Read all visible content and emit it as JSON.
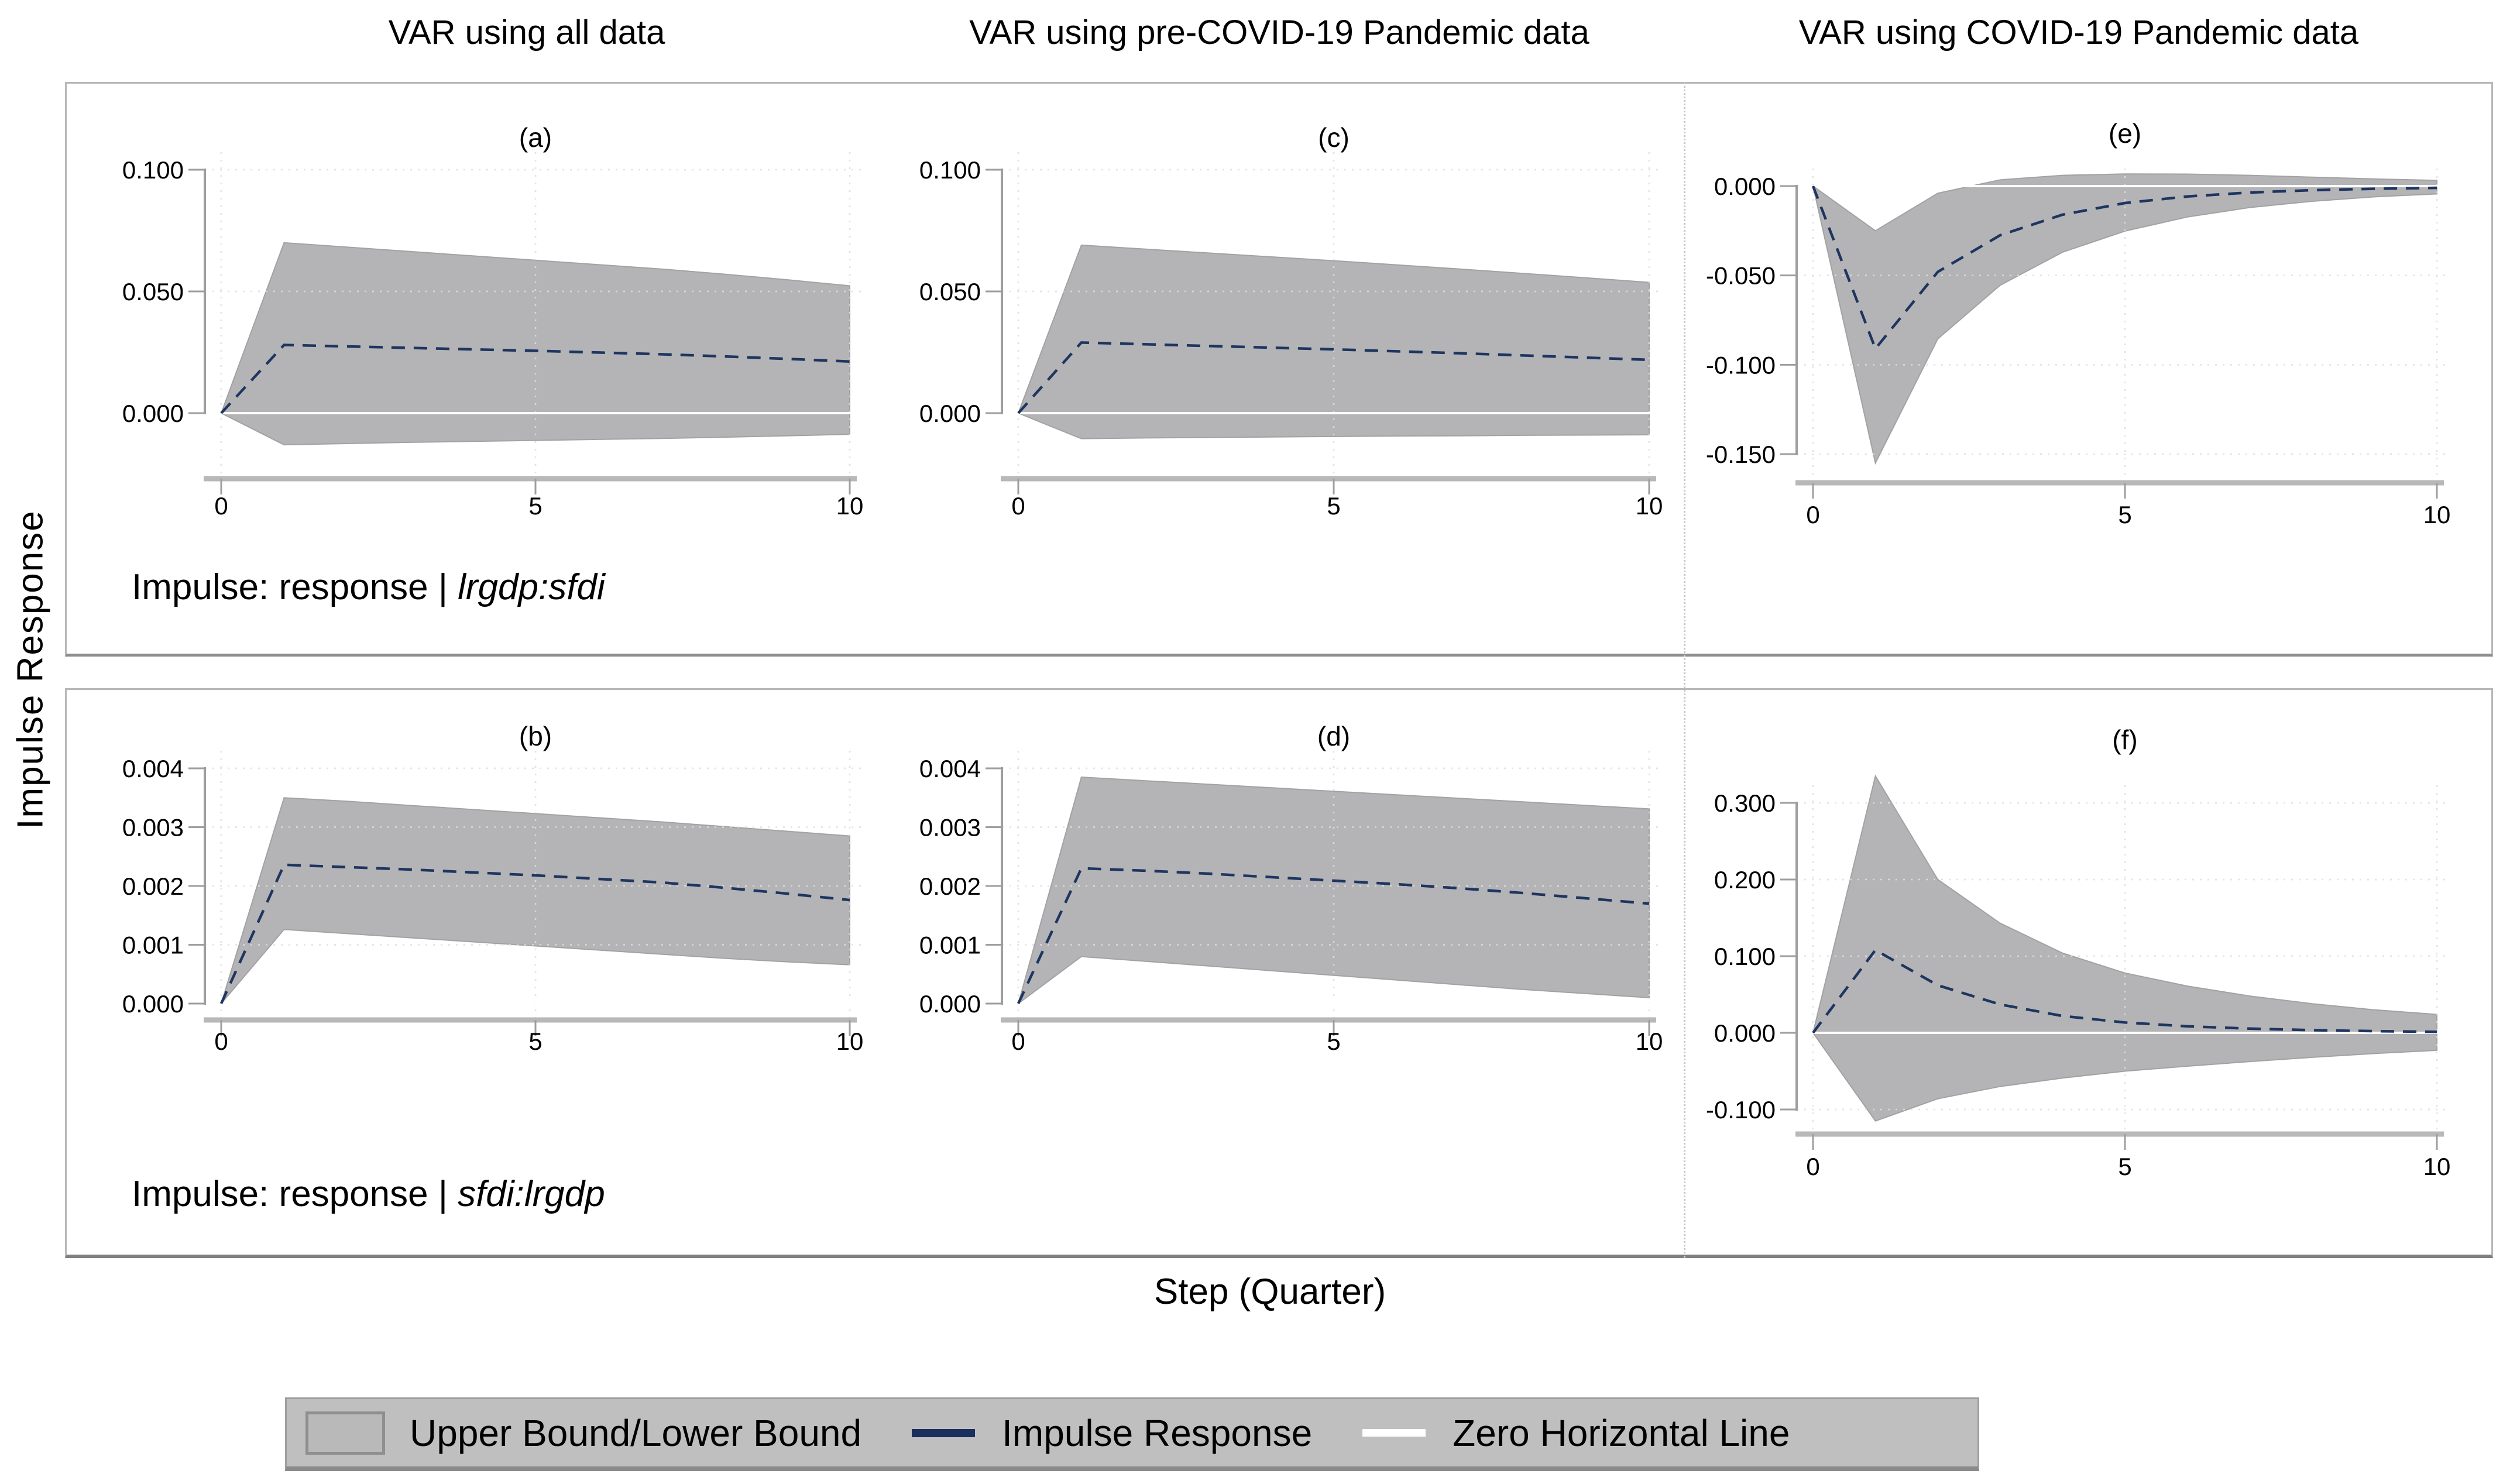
{
  "figure": {
    "column_titles": [
      "VAR using all data",
      "VAR using pre-COVID-19 Pandemic data",
      "VAR using COVID-19 Pandemic data"
    ],
    "y_axis_label": "Impulse Response",
    "x_axis_label": "Step (Quarter)",
    "row_captions": [
      {
        "prefix": "Impulse: response | ",
        "pair": "lrgdp:sfdi"
      },
      {
        "prefix": "Impulse: response | ",
        "pair": "sfdi:lrgdp"
      }
    ],
    "legend": {
      "band_label": "Upper Bound/Lower Bound",
      "line_label": "Impulse Response",
      "zero_label": "Zero Horizontal Line"
    },
    "colors": {
      "band": "#b4b4b6",
      "band_edge": "#a2a2a4",
      "irf_line": "#1e3560",
      "zero_line": "#ffffff",
      "grid": "#c9c9c9",
      "axis": "#9e9e9e",
      "axis_bar": "#b8b8b8",
      "legend_bg": "#bfbfbf"
    }
  },
  "chart_data": [
    {
      "id": "a",
      "type": "area",
      "label": "(a)",
      "column_title": "VAR using all data",
      "impulse_pair": "lrgdp:sfdi",
      "x": [
        0,
        1,
        2,
        3,
        4,
        5,
        6,
        7,
        8,
        9,
        10
      ],
      "upper": [
        0,
        0.07,
        0.0682,
        0.0664,
        0.0646,
        0.0628,
        0.061,
        0.0592,
        0.0571,
        0.0548,
        0.0523
      ],
      "irf": [
        0,
        0.028,
        0.0274,
        0.0268,
        0.0262,
        0.0256,
        0.0249,
        0.0242,
        0.0233,
        0.0223,
        0.0212
      ],
      "lower": [
        0,
        -0.013,
        -0.0125,
        -0.012,
        -0.0116,
        -0.0112,
        -0.0108,
        -0.0104,
        -0.0099,
        -0.0093,
        -0.0087
      ],
      "yticks": {
        "labels": [
          "0.100",
          "0.050",
          "0.000"
        ],
        "values": [
          0.1,
          0.05,
          0
        ]
      },
      "xticks": {
        "labels": [
          "0",
          "5",
          "10"
        ],
        "values": [
          0,
          5,
          10
        ]
      }
    },
    {
      "id": "c",
      "type": "area",
      "label": "(c)",
      "column_title": "VAR using pre-COVID-19 Pandemic data",
      "impulse_pair": "lrgdp:sfdi",
      "x": [
        0,
        1,
        2,
        3,
        4,
        5,
        6,
        7,
        8,
        9,
        10
      ],
      "upper": [
        0,
        0.069,
        0.0674,
        0.0658,
        0.0642,
        0.0626,
        0.0609,
        0.0592,
        0.0574,
        0.0556,
        0.0537
      ],
      "irf": [
        0,
        0.029,
        0.0283,
        0.0276,
        0.0269,
        0.0262,
        0.0254,
        0.0246,
        0.0237,
        0.0228,
        0.0219
      ],
      "lower": [
        0,
        -0.0105,
        -0.0102,
        -0.01,
        -0.0098,
        -0.0096,
        -0.0094,
        -0.0093,
        -0.0091,
        -0.009,
        -0.0089
      ],
      "yticks": {
        "labels": [
          "0.100",
          "0.050",
          "0.000"
        ],
        "values": [
          0.1,
          0.05,
          0
        ]
      },
      "xticks": {
        "labels": [
          "0",
          "5",
          "10"
        ],
        "values": [
          0,
          5,
          10
        ]
      }
    },
    {
      "id": "e",
      "type": "area",
      "label": "(e)",
      "column_title": "VAR using COVID-19 Pandemic data",
      "impulse_pair": "lrgdp:sfdi",
      "x": [
        0,
        1,
        2,
        3,
        4,
        5,
        6,
        7,
        8,
        9,
        10
      ],
      "upper": [
        0,
        -0.025,
        -0.004,
        0.0035,
        0.006,
        0.0068,
        0.0067,
        0.006,
        0.005,
        0.004,
        0.0032
      ],
      "irf": [
        0,
        -0.091,
        -0.048,
        -0.0275,
        -0.016,
        -0.0095,
        -0.0058,
        -0.0036,
        -0.0023,
        -0.0015,
        -0.001
      ],
      "lower": [
        0,
        -0.155,
        -0.0855,
        -0.0555,
        -0.037,
        -0.0252,
        -0.0173,
        -0.012,
        -0.0085,
        -0.006,
        -0.0044
      ],
      "yticks": {
        "labels": [
          "0.000",
          "-0.050",
          "-0.100",
          "-0.150"
        ],
        "values": [
          0,
          -0.05,
          -0.1,
          -0.15
        ]
      },
      "xticks": {
        "labels": [
          "0",
          "5",
          "10"
        ],
        "values": [
          0,
          5,
          10
        ]
      }
    },
    {
      "id": "b",
      "type": "area",
      "label": "(b)",
      "column_title": "VAR using all data",
      "impulse_pair": "sfdi:lrgdp",
      "x": [
        0,
        1,
        2,
        3,
        4,
        5,
        6,
        7,
        8,
        9,
        10
      ],
      "upper": [
        0,
        0.0035,
        0.00344,
        0.00337,
        0.0033,
        0.00323,
        0.00316,
        0.00309,
        0.00301,
        0.00293,
        0.00285
      ],
      "irf": [
        0,
        0.00236,
        0.00232,
        0.00228,
        0.00223,
        0.00218,
        0.00212,
        0.00206,
        0.00197,
        0.00187,
        0.00176
      ],
      "lower": [
        0,
        0.00126,
        0.00119,
        0.00112,
        0.00105,
        0.00098,
        0.00091,
        0.00084,
        0.00077,
        0.00071,
        0.00066
      ],
      "yticks": {
        "labels": [
          "0.004",
          "0.003",
          "0.002",
          "0.001",
          "0.000"
        ],
        "values": [
          0.004,
          0.003,
          0.002,
          0.001,
          0
        ]
      },
      "xticks": {
        "labels": [
          "0",
          "5",
          "10"
        ],
        "values": [
          0,
          5,
          10
        ]
      }
    },
    {
      "id": "d",
      "type": "area",
      "label": "(d)",
      "column_title": "VAR using pre-COVID-19 Pandemic data",
      "impulse_pair": "sfdi:lrgdp",
      "x": [
        0,
        1,
        2,
        3,
        4,
        5,
        6,
        7,
        8,
        9,
        10
      ],
      "upper": [
        0,
        0.00385,
        0.00379,
        0.00373,
        0.00367,
        0.00361,
        0.00355,
        0.00349,
        0.00343,
        0.00337,
        0.00331
      ],
      "irf": [
        0,
        0.0023,
        0.00226,
        0.00221,
        0.00215,
        0.00209,
        0.00203,
        0.00196,
        0.00188,
        0.00179,
        0.0017
      ],
      "lower": [
        0,
        0.0008,
        0.00072,
        0.00064,
        0.00056,
        0.00048,
        0.0004,
        0.00032,
        0.00024,
        0.00017,
        0.0001
      ],
      "yticks": {
        "labels": [
          "0.004",
          "0.003",
          "0.002",
          "0.001",
          "0.000"
        ],
        "values": [
          0.004,
          0.003,
          0.002,
          0.001,
          0
        ]
      },
      "xticks": {
        "labels": [
          "0",
          "5",
          "10"
        ],
        "values": [
          0,
          5,
          10
        ]
      }
    },
    {
      "id": "f",
      "type": "area",
      "label": "(f)",
      "column_title": "VAR using COVID-19 Pandemic data",
      "impulse_pair": "sfdi:lrgdp",
      "x": [
        0,
        1,
        2,
        3,
        4,
        5,
        6,
        7,
        8,
        9,
        10
      ],
      "upper": [
        0,
        0.335,
        0.2,
        0.143,
        0.104,
        0.078,
        0.061,
        0.048,
        0.038,
        0.03,
        0.024
      ],
      "irf": [
        0,
        0.108,
        0.062,
        0.037,
        0.022,
        0.0135,
        0.0085,
        0.0055,
        0.0035,
        0.0022,
        0.0013
      ],
      "lower": [
        0,
        -0.115,
        -0.086,
        -0.07,
        -0.059,
        -0.05,
        -0.0435,
        -0.0375,
        -0.032,
        -0.027,
        -0.0228
      ],
      "yticks": {
        "labels": [
          "0.300",
          "0.200",
          "0.100",
          "0.000",
          "-0.100"
        ],
        "values": [
          0.3,
          0.2,
          0.1,
          0,
          -0.1
        ]
      },
      "xticks": {
        "labels": [
          "0",
          "5",
          "10"
        ],
        "values": [
          0,
          5,
          10
        ]
      }
    }
  ]
}
